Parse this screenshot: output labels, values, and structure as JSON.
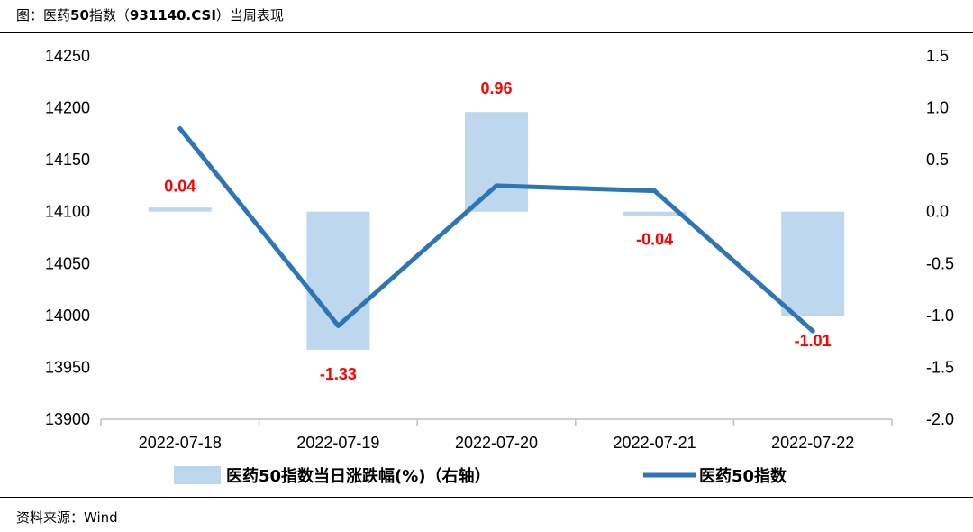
{
  "title": {
    "prefix": "图：医药",
    "num": "50",
    "mid": "指数（",
    "code": "931140.CSI",
    "suffix": "）当周表现"
  },
  "source": "资料来源：Wind",
  "colors": {
    "bar": "#bdd7ee",
    "line": "#2e75b6",
    "label": "#ff0000",
    "axis": "#bfbfbf"
  },
  "chart_data": {
    "type": "bar+line",
    "categories": [
      "2022-07-18",
      "2022-07-19",
      "2022-07-20",
      "2022-07-21",
      "2022-07-22"
    ],
    "series": [
      {
        "name": "医药50指数当日涨跌幅(%)（右轴）",
        "type": "bar",
        "axis": "right",
        "values": [
          0.04,
          -1.33,
          0.96,
          -0.04,
          -1.01
        ],
        "labels": [
          "0.04",
          "-1.33",
          "0.96",
          "-0.04",
          "-1.01"
        ]
      },
      {
        "name": "医药50指数",
        "type": "line",
        "axis": "left",
        "values": [
          14180,
          13990,
          14125,
          14120,
          13985
        ]
      }
    ],
    "left_axis": {
      "min": 13900,
      "max": 14250,
      "step": 50,
      "ticks": [
        "14250",
        "14200",
        "14150",
        "14100",
        "14050",
        "14000",
        "13950",
        "13900"
      ]
    },
    "right_axis": {
      "min": -2.0,
      "max": 1.5,
      "step": 0.5,
      "ticks": [
        "1.5",
        "1.0",
        "0.5",
        "0.0",
        "-0.5",
        "-1.0",
        "-1.5",
        "-2.0"
      ]
    },
    "legend": {
      "position": "bottom",
      "items": [
        "医药50指数当日涨跌幅(%)（右轴）",
        "医药50指数"
      ]
    },
    "grid": false
  }
}
